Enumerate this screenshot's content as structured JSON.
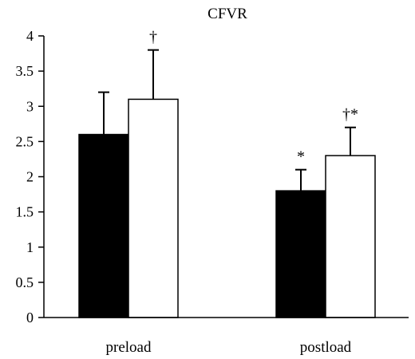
{
  "chart_data": {
    "type": "bar",
    "title": "CFVR",
    "xlabel": "",
    "ylabel": "",
    "categories": [
      "preload",
      "postload"
    ],
    "ylim": [
      0,
      4
    ],
    "yticks": [
      0,
      0.5,
      1,
      1.5,
      2,
      2.5,
      3,
      3.5,
      4
    ],
    "ytick_labels": [
      "0",
      "0.5",
      "1",
      "1.5",
      "2",
      "2.5",
      "3",
      "3.5",
      "4"
    ],
    "grid": false,
    "legend": false,
    "error_bars": "upper",
    "series": [
      {
        "fill": "#000000",
        "values": [
          2.6,
          1.8
        ],
        "errors": [
          0.6,
          0.3
        ],
        "annotations": [
          "",
          "*"
        ]
      },
      {
        "fill": "#ffffff",
        "values": [
          3.1,
          2.3
        ],
        "errors": [
          0.7,
          0.4
        ],
        "annotations": [
          "†",
          "†*"
        ]
      }
    ]
  }
}
